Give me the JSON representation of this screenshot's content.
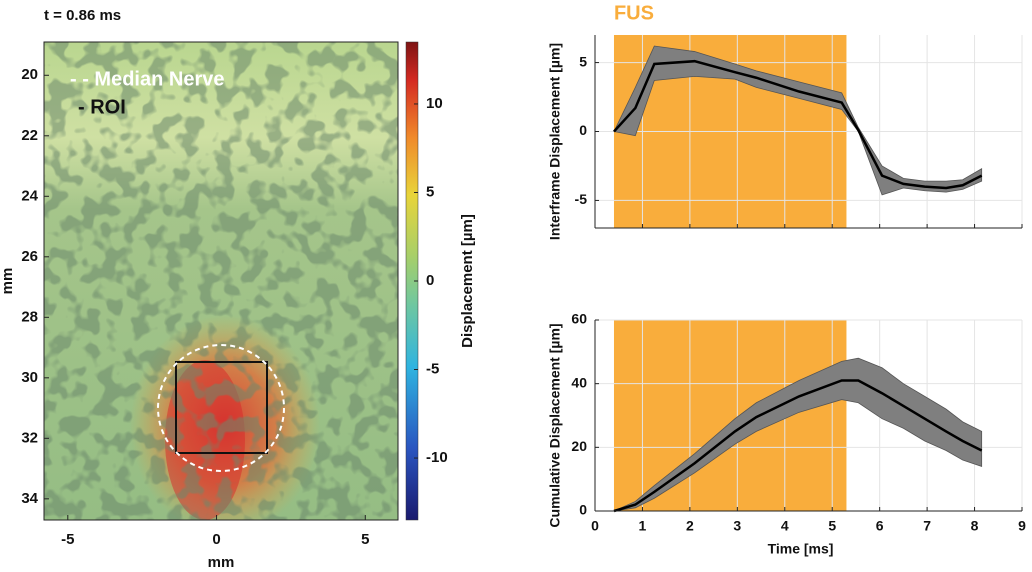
{
  "chart_data": [
    {
      "type": "image",
      "title": "t = 0.86 ms",
      "xlabel": "mm",
      "ylabel": "mm",
      "xlim": [
        -5.8,
        6.1
      ],
      "xticks": [
        -5,
        0,
        5
      ],
      "ylim": [
        18.9,
        34.7
      ],
      "yticks": [
        20,
        22,
        24,
        26,
        28,
        30,
        32,
        34
      ],
      "legend": [
        "- - Median Nerve",
        "- ROI"
      ],
      "colorbar_label": "Displacement [µm]",
      "clim": [
        -13.5,
        13.5
      ],
      "cticks": [
        -10,
        -5,
        0,
        5,
        10
      ]
    },
    {
      "type": "line",
      "ylabel": "Interframe Displacement [µm]",
      "annotation": "FUS",
      "shade": [
        0.4,
        5.3
      ],
      "shade_color": "#f9ad3c",
      "color": "#000000",
      "band_color": "#7f7f7f",
      "xlim": [
        0,
        9
      ],
      "xticks": [
        0,
        1,
        2,
        3,
        4,
        5,
        6,
        7,
        8,
        9
      ],
      "xtick_labels": false,
      "ylim": [
        -7,
        7
      ],
      "yticks": [
        -5,
        0,
        5
      ],
      "grid": true,
      "x": [
        0.4,
        0.85,
        1.25,
        2.1,
        2.95,
        3.4,
        4.3,
        5.2,
        5.55,
        6.05,
        6.5,
        6.95,
        7.4,
        7.75,
        8.15
      ],
      "values": [
        0,
        1.7,
        4.9,
        5.1,
        4.3,
        3.9,
        2.9,
        2.1,
        0.1,
        -3.2,
        -3.8,
        -4.0,
        -4.1,
        -3.9,
        -3.2
      ],
      "upper": [
        0,
        3.2,
        6.2,
        5.8,
        4.9,
        4.4,
        3.6,
        2.8,
        0.3,
        -2.5,
        -3.4,
        -3.6,
        -3.6,
        -3.5,
        -2.7
      ],
      "lower": [
        0,
        -0.3,
        3.7,
        4.0,
        3.8,
        3.2,
        2.4,
        1.6,
        0,
        -4.6,
        -4.1,
        -4.3,
        -4.4,
        -4.2,
        -3.6
      ]
    },
    {
      "type": "line",
      "ylabel": "Cumulative Displacement [µm]",
      "xlabel": "Time [ms]",
      "shade": [
        0.4,
        5.3
      ],
      "shade_color": "#f9ad3c",
      "color": "#000000",
      "band_color": "#7f7f7f",
      "xlim": [
        0,
        9
      ],
      "xticks": [
        0,
        1,
        2,
        3,
        4,
        5,
        6,
        7,
        8,
        9
      ],
      "xtick_labels": true,
      "ylim": [
        0,
        60
      ],
      "yticks": [
        0,
        20,
        40,
        60
      ],
      "grid": true,
      "x": [
        0.4,
        0.85,
        1.25,
        2.1,
        2.95,
        3.4,
        4.3,
        5.2,
        5.55,
        6.05,
        6.5,
        6.95,
        7.4,
        7.75,
        8.15
      ],
      "values": [
        0,
        2,
        6,
        15,
        25,
        29.5,
        36,
        41,
        41,
        37,
        33,
        29,
        25,
        22,
        19
      ],
      "upper": [
        0,
        3,
        8,
        18,
        29,
        34,
        41,
        47,
        48,
        45,
        40,
        36,
        32,
        28,
        25
      ],
      "lower": [
        0,
        1,
        4,
        12,
        21,
        25,
        31,
        35,
        34,
        29,
        26,
        22,
        19,
        16,
        14
      ]
    }
  ]
}
